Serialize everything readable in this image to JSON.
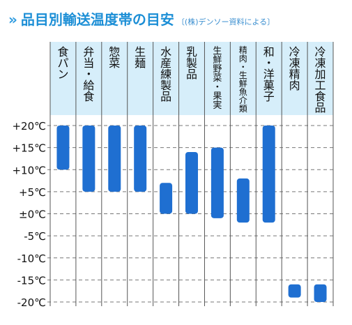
{
  "header": {
    "mark": "»",
    "title": "品目別輸送温度帯の目安",
    "source": "〔(株)デンソー資料による〕"
  },
  "colors": {
    "bar": "#1f6fd1",
    "grid": "#777777",
    "header_bg": "#d6eefa",
    "title": "#1d8fd6"
  },
  "chart_data": {
    "type": "bar",
    "orientation": "vertical-range",
    "title": "品目別輸送温度帯の目安",
    "xlabel": "",
    "ylabel": "",
    "ylim": [
      -20,
      20
    ],
    "yticks": [
      20,
      15,
      10,
      5,
      0,
      -5,
      -10,
      -15,
      -20
    ],
    "ytick_labels": [
      "+20℃",
      "+15℃",
      "+10℃",
      "+5℃",
      "±0℃",
      "-5℃",
      "-10℃",
      "-15℃",
      "-20℃"
    ],
    "grid": true,
    "categories": [
      "食パン",
      "弁当・給食",
      "惣菜",
      "生麺",
      "水産練製品",
      "乳製品",
      "生鮮野菜・果実",
      "精肉・生鮮魚介類",
      "和・洋菓子",
      "冷凍精肉",
      "冷凍加工食品"
    ],
    "series": [
      {
        "low": 10,
        "high": 20
      },
      {
        "low": 5,
        "high": 20
      },
      {
        "low": 5,
        "high": 20
      },
      {
        "low": 5,
        "high": 20
      },
      {
        "low": 0,
        "high": 7
      },
      {
        "low": 0,
        "high": 14
      },
      {
        "low": -1,
        "high": 15
      },
      {
        "low": -2,
        "high": 8
      },
      {
        "low": -2,
        "high": 20
      },
      {
        "low": -19,
        "high": -16
      },
      {
        "low": -20,
        "high": -16
      }
    ]
  }
}
